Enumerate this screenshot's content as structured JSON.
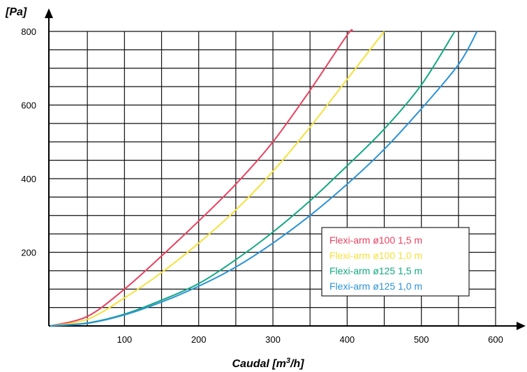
{
  "chart_data": {
    "type": "line",
    "ylabel": "[Pa]",
    "xlabel_prefix": "Caudal [m",
    "xlabel_sup": "3",
    "xlabel_suffix": "/h]",
    "xlim": [
      0,
      600
    ],
    "ylim": [
      0,
      800
    ],
    "x_ticks": [
      100,
      200,
      300,
      400,
      500,
      600
    ],
    "y_ticks": [
      200,
      400,
      600,
      800
    ],
    "grid": true,
    "legend_position": "lower-right",
    "series": [
      {
        "name": "Flexi-arm ø100 1,5 m",
        "color": "#e8415f",
        "points": [
          [
            0,
            0
          ],
          [
            50,
            26
          ],
          [
            100,
            100
          ],
          [
            150,
            190
          ],
          [
            200,
            285
          ],
          [
            250,
            385
          ],
          [
            300,
            500
          ],
          [
            350,
            640
          ],
          [
            400,
            790
          ],
          [
            407,
            800
          ]
        ]
      },
      {
        "name": "Flexi-arm ø100 1,0 m",
        "color": "#f5e13a",
        "points": [
          [
            0,
            0
          ],
          [
            50,
            18
          ],
          [
            100,
            76
          ],
          [
            150,
            145
          ],
          [
            200,
            225
          ],
          [
            250,
            315
          ],
          [
            300,
            420
          ],
          [
            350,
            540
          ],
          [
            400,
            670
          ],
          [
            450,
            800
          ]
        ]
      },
      {
        "name": "Flexi-arm ø125 1,5 m",
        "color": "#13a882",
        "points": [
          [
            0,
            0
          ],
          [
            50,
            8
          ],
          [
            100,
            32
          ],
          [
            150,
            70
          ],
          [
            200,
            115
          ],
          [
            250,
            180
          ],
          [
            300,
            255
          ],
          [
            350,
            340
          ],
          [
            400,
            435
          ],
          [
            450,
            535
          ],
          [
            500,
            655
          ],
          [
            545,
            800
          ]
        ]
      },
      {
        "name": "Flexi-arm ø125 1,0 m",
        "color": "#2b93d6",
        "points": [
          [
            0,
            0
          ],
          [
            50,
            7
          ],
          [
            100,
            30
          ],
          [
            150,
            65
          ],
          [
            200,
            108
          ],
          [
            250,
            160
          ],
          [
            300,
            225
          ],
          [
            350,
            300
          ],
          [
            400,
            385
          ],
          [
            450,
            480
          ],
          [
            500,
            590
          ],
          [
            550,
            710
          ],
          [
            575,
            800
          ]
        ]
      }
    ]
  }
}
